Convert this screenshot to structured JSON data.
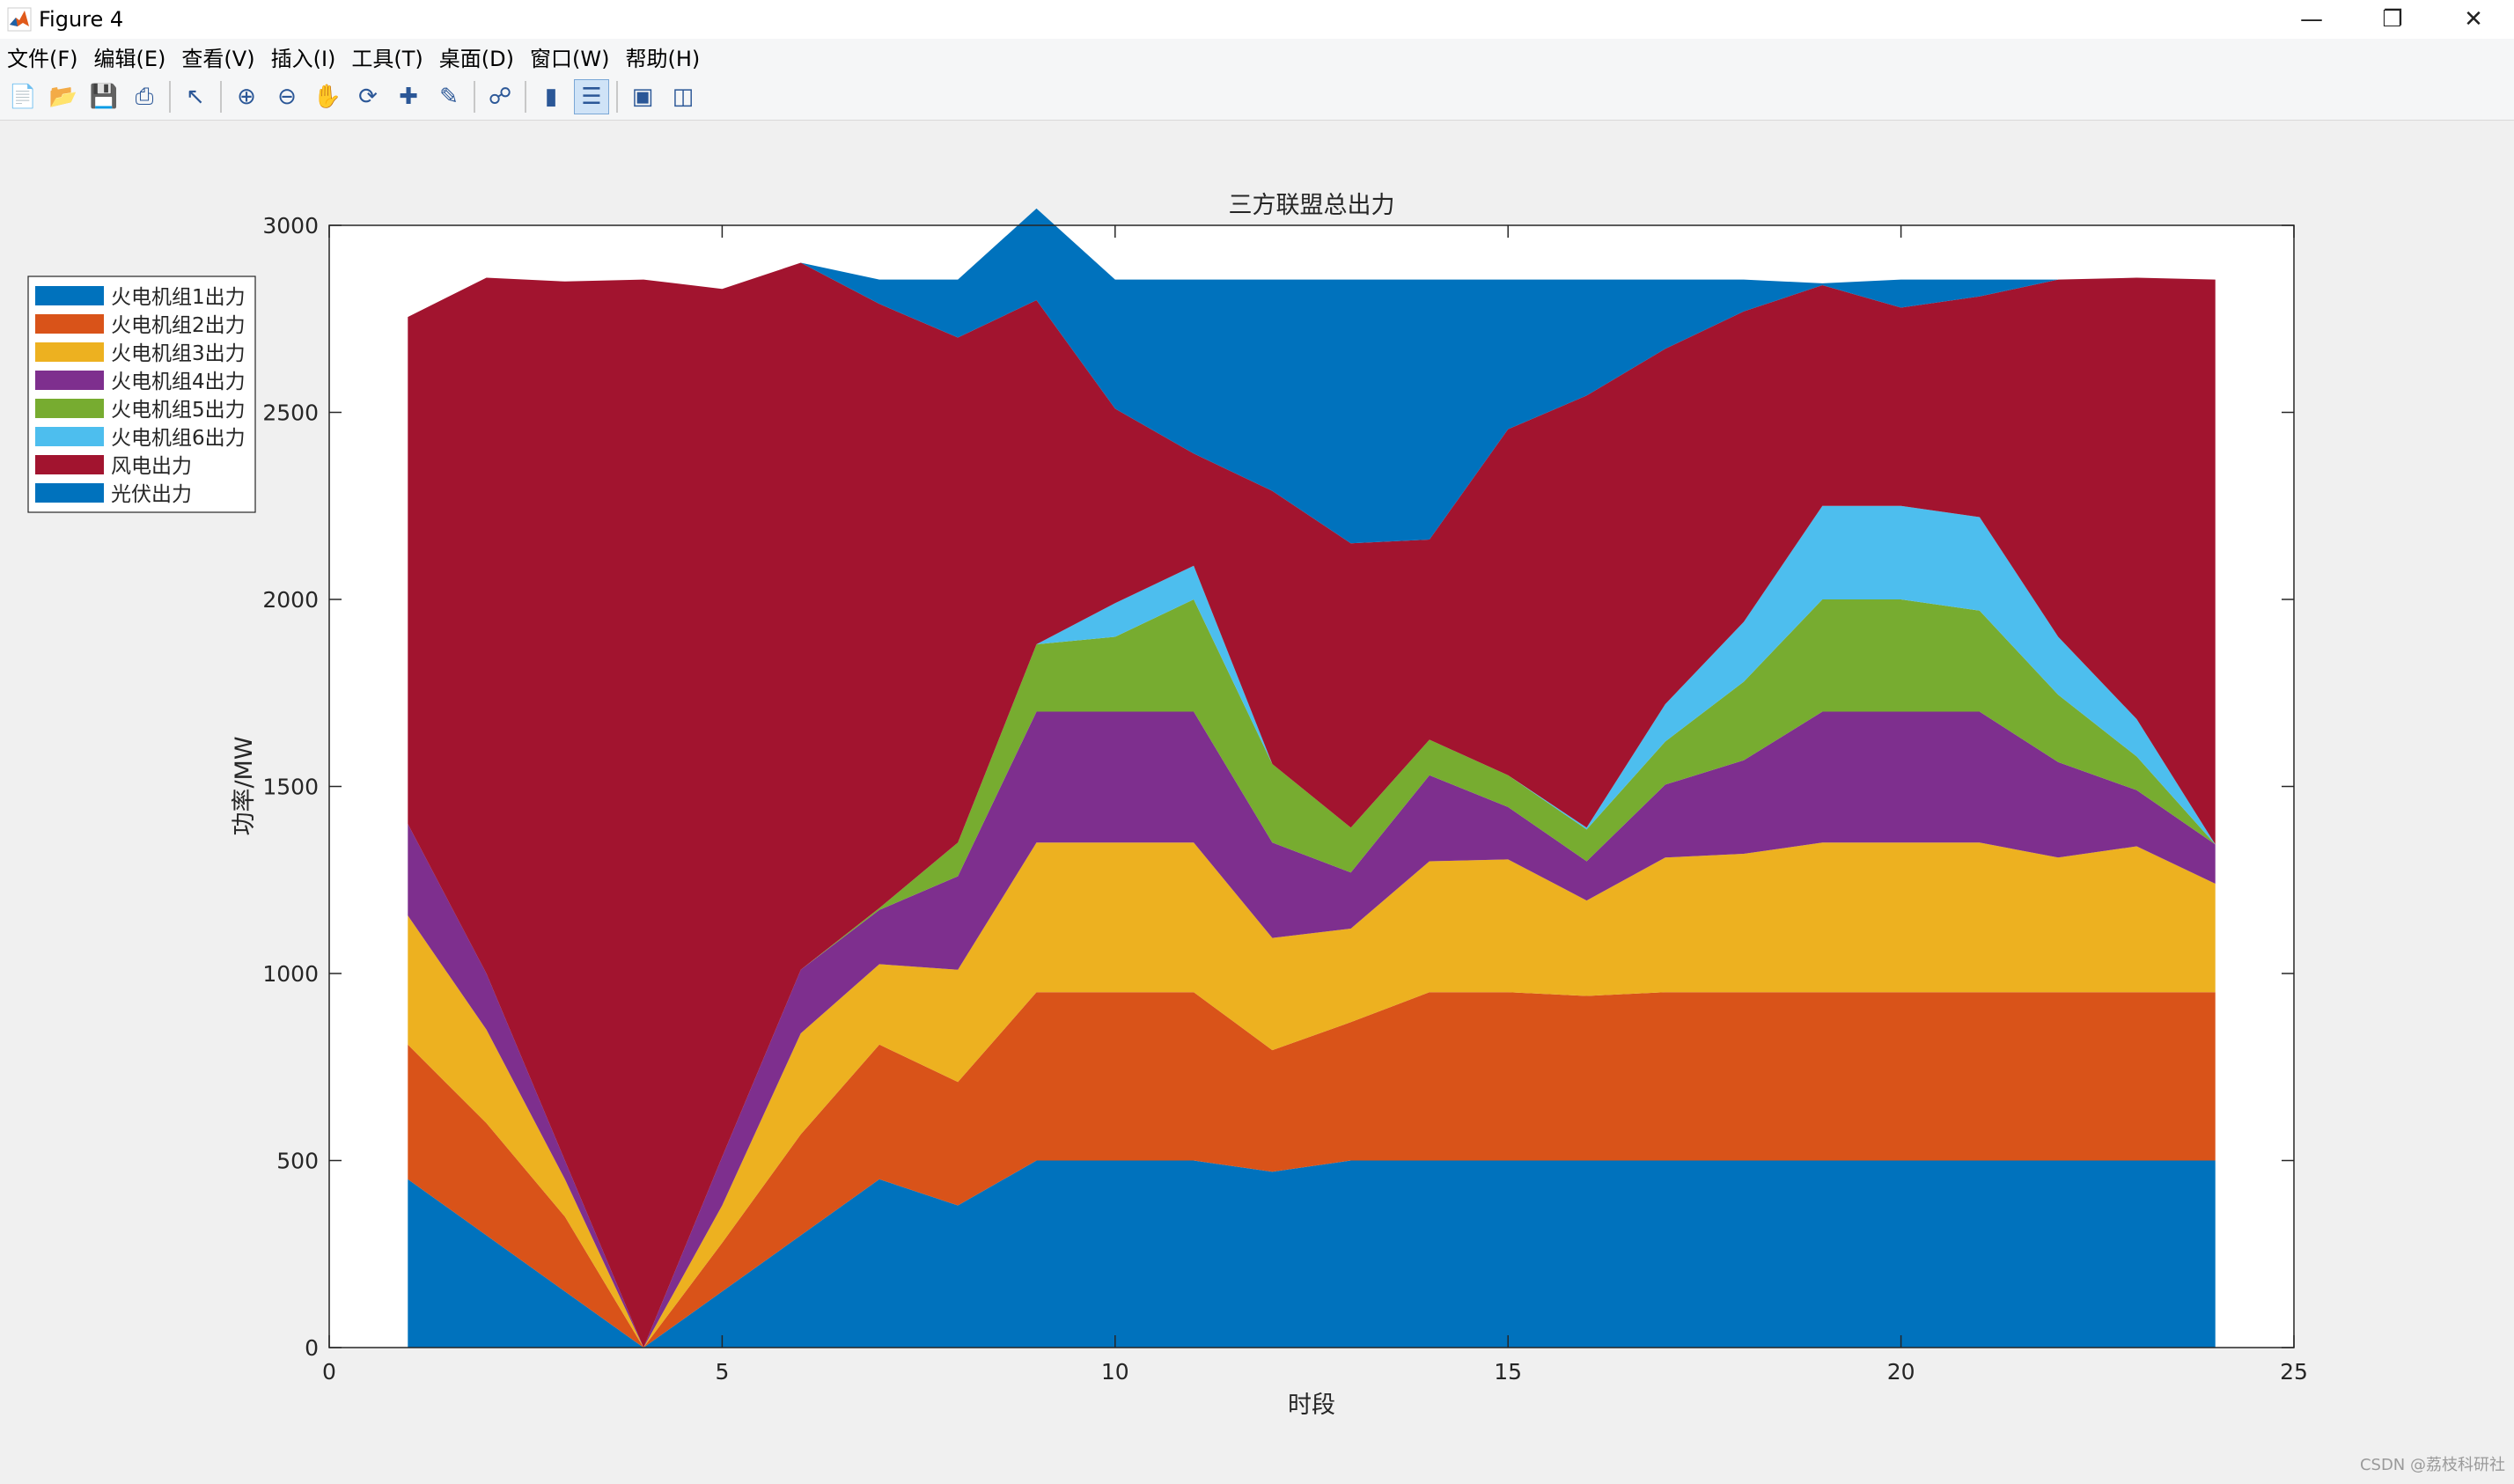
{
  "window": {
    "title": "Figure 4",
    "icon": "matlab-icon",
    "controls": [
      "minimize-icon",
      "restore-icon",
      "close-icon"
    ]
  },
  "menu": [
    {
      "label": "文件(F)"
    },
    {
      "label": "编辑(E)"
    },
    {
      "label": "查看(V)"
    },
    {
      "label": "插入(I)"
    },
    {
      "label": "工具(T)"
    },
    {
      "label": "桌面(D)"
    },
    {
      "label": "窗口(W)"
    },
    {
      "label": "帮助(H)"
    }
  ],
  "toolbar": [
    "new-figure-icon",
    "open-file-icon",
    "save-icon",
    "print-icon",
    "pointer-icon",
    "zoom-in-icon",
    "zoom-out-icon",
    "pan-icon",
    "rotate-icon",
    "data-cursor-icon",
    "brush-icon",
    "link-plot-icon",
    "colorbar-icon",
    "legend-icon",
    "hide-plot-tools-icon",
    "show-plot-tools-icon"
  ],
  "colors": {
    "thermal1": "#0072BD",
    "thermal2": "#D95319",
    "thermal3": "#EDB120",
    "thermal4": "#7E2F8E",
    "thermal5": "#77AC30",
    "thermal6": "#4DBEEE",
    "wind": "#A2142F",
    "solar": "#0072BD"
  },
  "chart_data": {
    "type": "area",
    "stacked": true,
    "title": "三方联盟总出力",
    "xlabel": "时段",
    "ylabel": "功率/MW",
    "xlim": [
      0,
      25
    ],
    "ylim": [
      0,
      3000
    ],
    "xticks": [
      0,
      5,
      10,
      15,
      20,
      25
    ],
    "yticks": [
      0,
      500,
      1000,
      1500,
      2000,
      2500,
      3000
    ],
    "grid": false,
    "legend_position": "outside-left-top",
    "x": [
      1,
      2,
      3,
      4,
      5,
      6,
      7,
      8,
      9,
      10,
      11,
      12,
      13,
      14,
      15,
      16,
      17,
      18,
      19,
      20,
      21,
      22,
      23,
      24
    ],
    "series": [
      {
        "name": "火电机组1出力",
        "color_key": "thermal1",
        "values": [
          450,
          300,
          150,
          0,
          150,
          300,
          450,
          380,
          500,
          500,
          500,
          470,
          500,
          500,
          500,
          500,
          500,
          500,
          500,
          500,
          500,
          500,
          500,
          500
        ]
      },
      {
        "name": "火电机组2出力",
        "color_key": "thermal2",
        "values": [
          360,
          300,
          200,
          0,
          130,
          270,
          360,
          330,
          450,
          450,
          450,
          325,
          370,
          450,
          450,
          440,
          450,
          450,
          450,
          450,
          450,
          450,
          450,
          450
        ]
      },
      {
        "name": "火电机组3出力",
        "color_key": "thermal3",
        "values": [
          345,
          250,
          100,
          0,
          100,
          270,
          215,
          300,
          400,
          400,
          400,
          300,
          250,
          350,
          355,
          255,
          360,
          370,
          400,
          400,
          400,
          360,
          390,
          290
        ]
      },
      {
        "name": "火电机组4出力",
        "color_key": "thermal4",
        "values": [
          245,
          150,
          50,
          0,
          130,
          170,
          145,
          250,
          350,
          350,
          350,
          255,
          150,
          230,
          140,
          105,
          195,
          250,
          350,
          350,
          350,
          255,
          150,
          105
        ]
      },
      {
        "name": "火电机组5出力",
        "color_key": "thermal5",
        "values": [
          0,
          0,
          0,
          0,
          0,
          0,
          5,
          90,
          180,
          200,
          300,
          210,
          120,
          95,
          85,
          85,
          115,
          210,
          300,
          300,
          270,
          180,
          90,
          0
        ]
      },
      {
        "name": "火电机组6出力",
        "color_key": "thermal6",
        "values": [
          0,
          0,
          0,
          0,
          0,
          0,
          0,
          0,
          0,
          90,
          90,
          0,
          0,
          0,
          0,
          5,
          100,
          160,
          250,
          250,
          250,
          155,
          100,
          0
        ]
      },
      {
        "name": "风电出力",
        "color_key": "wind",
        "values": [
          1355,
          1860,
          2350,
          2855,
          2320,
          1890,
          1615,
          1350,
          920,
          520,
          300,
          730,
          760,
          535,
          925,
          1155,
          950,
          830,
          590,
          530,
          590,
          955,
          1180,
          1510
        ]
      },
      {
        "name": "光伏出力",
        "color_key": "solar",
        "values": [
          0,
          0,
          0,
          0,
          0,
          0,
          65,
          155,
          245,
          345,
          465,
          565,
          705,
          695,
          400,
          310,
          185,
          85,
          5,
          75,
          45,
          0,
          0,
          0
        ]
      }
    ]
  },
  "watermark": "CSDN @荔枝科研社"
}
